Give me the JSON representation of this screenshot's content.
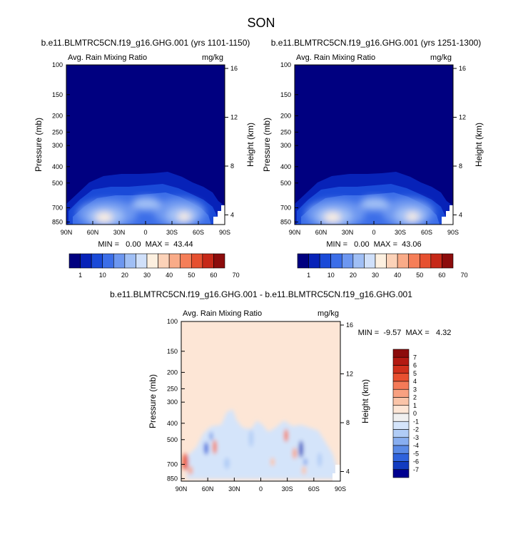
{
  "figure": {
    "title": "SON"
  },
  "chart_data": [
    {
      "type": "heatmap",
      "title": "b.e11.BLMTRC5CN.f19_g16.GHG.001 (yrs 1101-1150)",
      "left_label": "Avg. Rain Mixing Ratio",
      "right_label": "mg/kg",
      "xlabel": "",
      "ylabel": "Pressure (mb)",
      "ylabel_right": "Height (km)",
      "x_ticks": [
        "90N",
        "60N",
        "30N",
        "0",
        "30S",
        "60S",
        "90S"
      ],
      "y_ticks": [
        "100",
        "150",
        "200",
        "250",
        "300",
        "400",
        "500",
        "700",
        "850"
      ],
      "height_ticks": [
        "16",
        "12",
        "8",
        "4"
      ],
      "stats": "MIN =   0.00  MAX =  43.44",
      "colorbar": {
        "labels": [
          "1",
          "10",
          "20",
          "30",
          "40",
          "50",
          "60",
          "70"
        ],
        "colors": [
          "#000080",
          "#0722b8",
          "#1a4ad8",
          "#3c6ee8",
          "#6d97f0",
          "#a0bff5",
          "#d0e0fa",
          "#fdf0e0",
          "#fcd2b8",
          "#f9ab88",
          "#f57e58",
          "#e65030",
          "#c62818",
          "#8c0c0c"
        ]
      },
      "field": {
        "peak": 43.44,
        "xlim": [
          90,
          -90
        ],
        "ylim": [
          1000,
          100
        ],
        "ylog": true
      }
    },
    {
      "type": "heatmap",
      "title": "b.e11.BLMTRC5CN.f19_g16.GHG.001 (yrs 1251-1300)",
      "left_label": "Avg. Rain Mixing Ratio",
      "right_label": "mg/kg",
      "xlabel": "",
      "ylabel": "Pressure (mb)",
      "ylabel_right": "Height (km)",
      "x_ticks": [
        "90N",
        "60N",
        "30N",
        "0",
        "30S",
        "60S",
        "90S"
      ],
      "y_ticks": [
        "100",
        "150",
        "200",
        "250",
        "300",
        "400",
        "500",
        "700",
        "850"
      ],
      "height_ticks": [
        "16",
        "12",
        "8",
        "4"
      ],
      "stats": "MIN =   0.00  MAX =  43.06",
      "colorbar": {
        "labels": [
          "1",
          "10",
          "20",
          "30",
          "40",
          "50",
          "60",
          "70"
        ],
        "colors": [
          "#000080",
          "#0722b8",
          "#1a4ad8",
          "#3c6ee8",
          "#6d97f0",
          "#a0bff5",
          "#d0e0fa",
          "#fdf0e0",
          "#fcd2b8",
          "#f9ab88",
          "#f57e58",
          "#e65030",
          "#c62818",
          "#8c0c0c"
        ]
      },
      "field": {
        "peak": 43.06,
        "xlim": [
          90,
          -90
        ],
        "ylim": [
          1000,
          100
        ],
        "ylog": true
      }
    },
    {
      "type": "heatmap",
      "title": "b.e11.BLMTRC5CN.f19_g16.GHG.001 - b.e11.BLMTRC5CN.f19_g16.GHG.001",
      "left_label": "Avg. Rain Mixing Ratio",
      "right_label": "mg/kg",
      "xlabel": "",
      "ylabel": "Pressure (mb)",
      "ylabel_right": "Height (km)",
      "x_ticks": [
        "90N",
        "60N",
        "30N",
        "0",
        "30S",
        "60S",
        "90S"
      ],
      "y_ticks": [
        "100",
        "150",
        "200",
        "250",
        "300",
        "400",
        "500",
        "700",
        "850"
      ],
      "height_ticks": [
        "16",
        "12",
        "8",
        "4"
      ],
      "stats": "MIN =  -9.57  MAX =   4.32",
      "colorbar": {
        "labels": [
          "7",
          "6",
          "5",
          "4",
          "3",
          "2",
          "1",
          "0",
          "-1",
          "-2",
          "-3",
          "-4",
          "-5",
          "-6",
          "-7"
        ],
        "colors": [
          "#8c0c0c",
          "#b31a12",
          "#d0301c",
          "#e85030",
          "#f47a58",
          "#f8a080",
          "#fac4a8",
          "#fde6d6",
          "#f0f0f0",
          "#d4e4fa",
          "#b0ccf6",
          "#88aef0",
          "#5a8ae6",
          "#2e62dc",
          "#123cc0",
          "#000090"
        ]
      },
      "field": {
        "background": "#fde6d6",
        "xlim": [
          90,
          -90
        ],
        "ylim": [
          1000,
          100
        ],
        "ylog": true
      }
    }
  ]
}
